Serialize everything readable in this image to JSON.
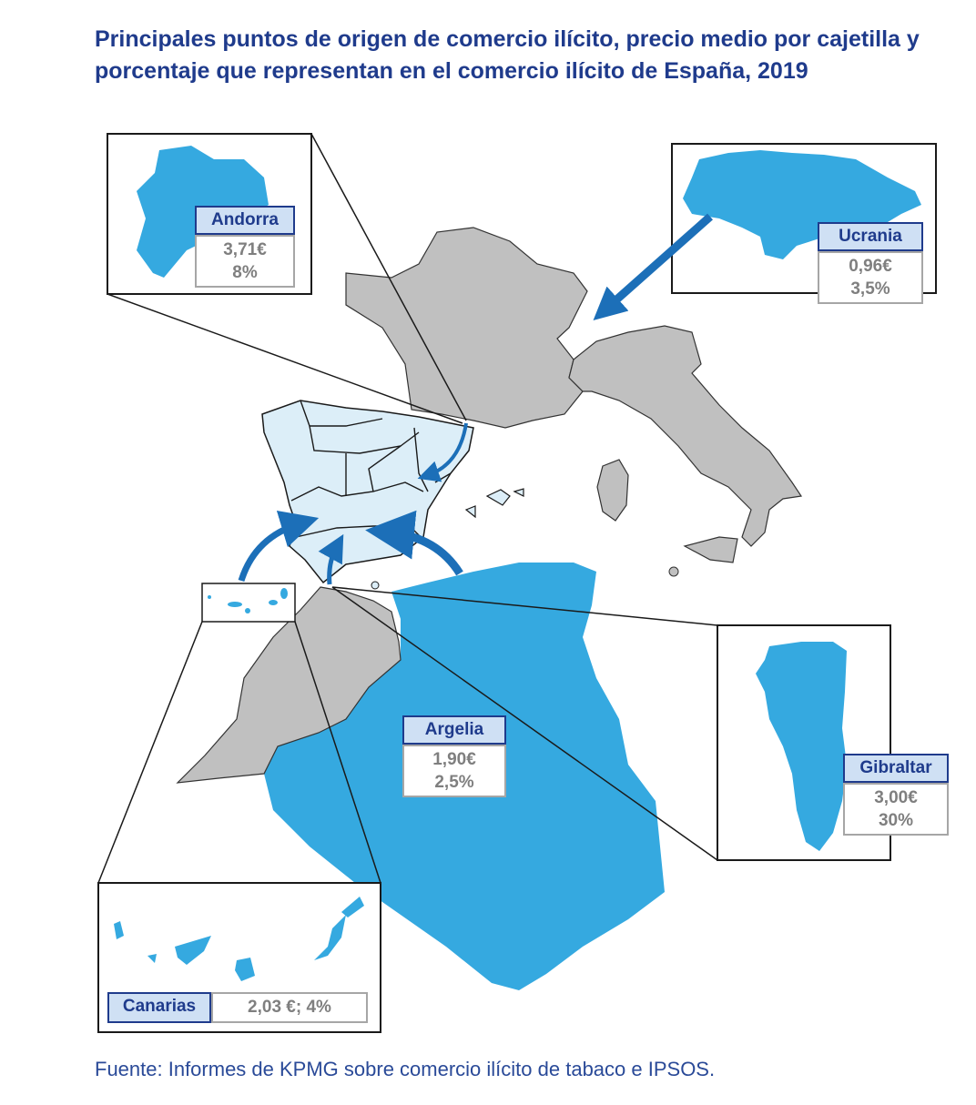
{
  "title": "Principales puntos de origen de comercio ilícito, precio medio por cajetilla y porcentaje que representan en el comercio ilícito de España, 2019",
  "source": "Fuente: Informes de KPMG sobre comercio ilícito de tabaco e IPSOS.",
  "colors": {
    "title": "#1f3b8c",
    "origin_fill": "#35a9e0",
    "neighbor_fill": "#c0c0c0",
    "spain_fill": "#dceef8",
    "arrow": "#1c6fb8",
    "label_bg": "#cfe0f4"
  },
  "origins": [
    {
      "name": "Andorra",
      "price": "3,71€",
      "share": "8%"
    },
    {
      "name": "Ucrania",
      "price": "0,96€",
      "share": "3,5%"
    },
    {
      "name": "Argelia",
      "price": "1,90€",
      "share": "2,5%"
    },
    {
      "name": "Gibraltar",
      "price": "3,00€",
      "share": "30%"
    },
    {
      "name": "Canarias",
      "combined": "2,03 €; 4%"
    }
  ]
}
